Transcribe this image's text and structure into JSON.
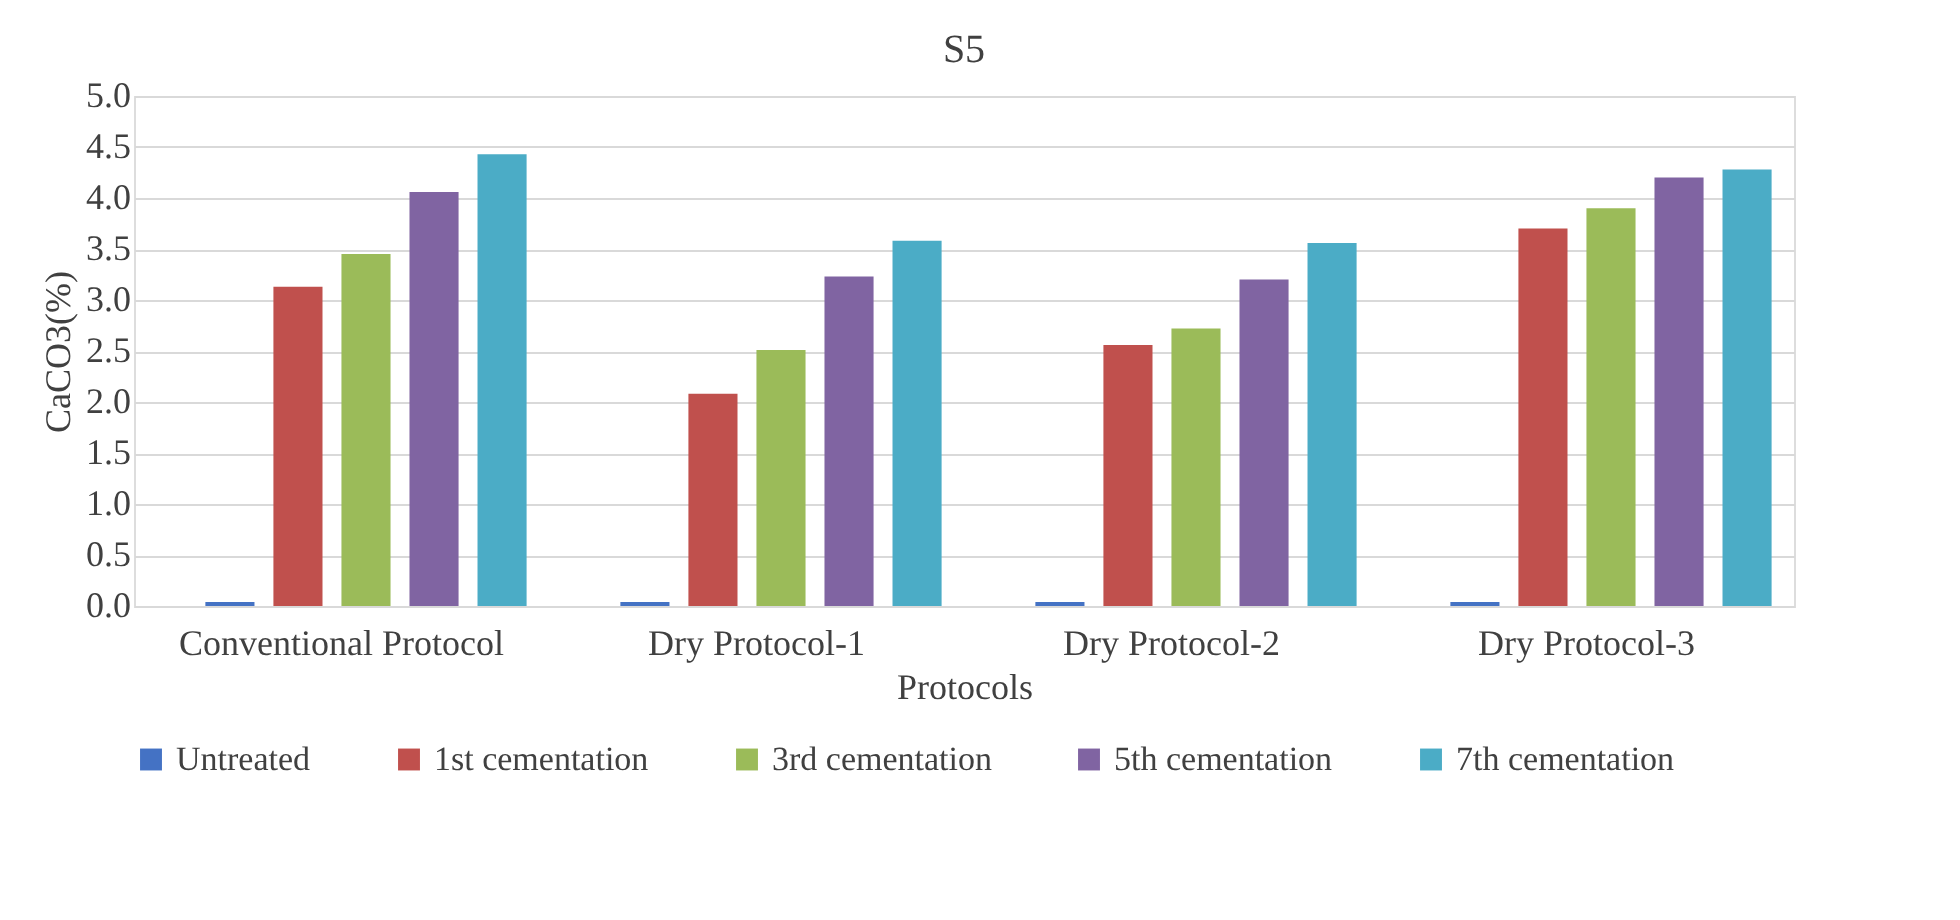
{
  "chart_data": {
    "type": "bar",
    "title": "S5",
    "xlabel": "Protocols",
    "ylabel": "CaCO3(%)",
    "categories": [
      "Conventional Protocol",
      "Dry Protocol-1",
      "Dry Protocol-2",
      "Dry Protocol-3"
    ],
    "series": [
      {
        "name": "Untreated",
        "color": "#4472c4",
        "values": [
          0.04,
          0.04,
          0.04,
          0.04
        ]
      },
      {
        "name": "1st cementation",
        "color": "#c0504d",
        "values": [
          3.13,
          2.08,
          2.56,
          3.7
        ]
      },
      {
        "name": "3rd cementation",
        "color": "#9bbb59",
        "values": [
          3.45,
          2.51,
          2.72,
          3.9
        ]
      },
      {
        "name": "5th cementation",
        "color": "#8064a2",
        "values": [
          4.06,
          3.23,
          3.2,
          4.2
        ]
      },
      {
        "name": "7th cementation",
        "color": "#4bacc6",
        "values": [
          4.43,
          3.58,
          3.56,
          4.28
        ]
      }
    ],
    "ylim": [
      0,
      5
    ],
    "yticks": [
      {
        "value": 0,
        "label": "0.0"
      },
      {
        "value": 0.5,
        "label": "0.5"
      },
      {
        "value": 1,
        "label": "1.0"
      },
      {
        "value": 1.5,
        "label": "1.5"
      },
      {
        "value": 2,
        "label": "2.0"
      },
      {
        "value": 2.5,
        "label": "2.5"
      },
      {
        "value": 3,
        "label": "3.0"
      },
      {
        "value": 3.5,
        "label": "3.5"
      },
      {
        "value": 4,
        "label": "4.0"
      },
      {
        "value": 4.5,
        "label": "4.5"
      },
      {
        "value": 5,
        "label": "5.0"
      }
    ],
    "grid": "y",
    "legend": "bottom"
  }
}
